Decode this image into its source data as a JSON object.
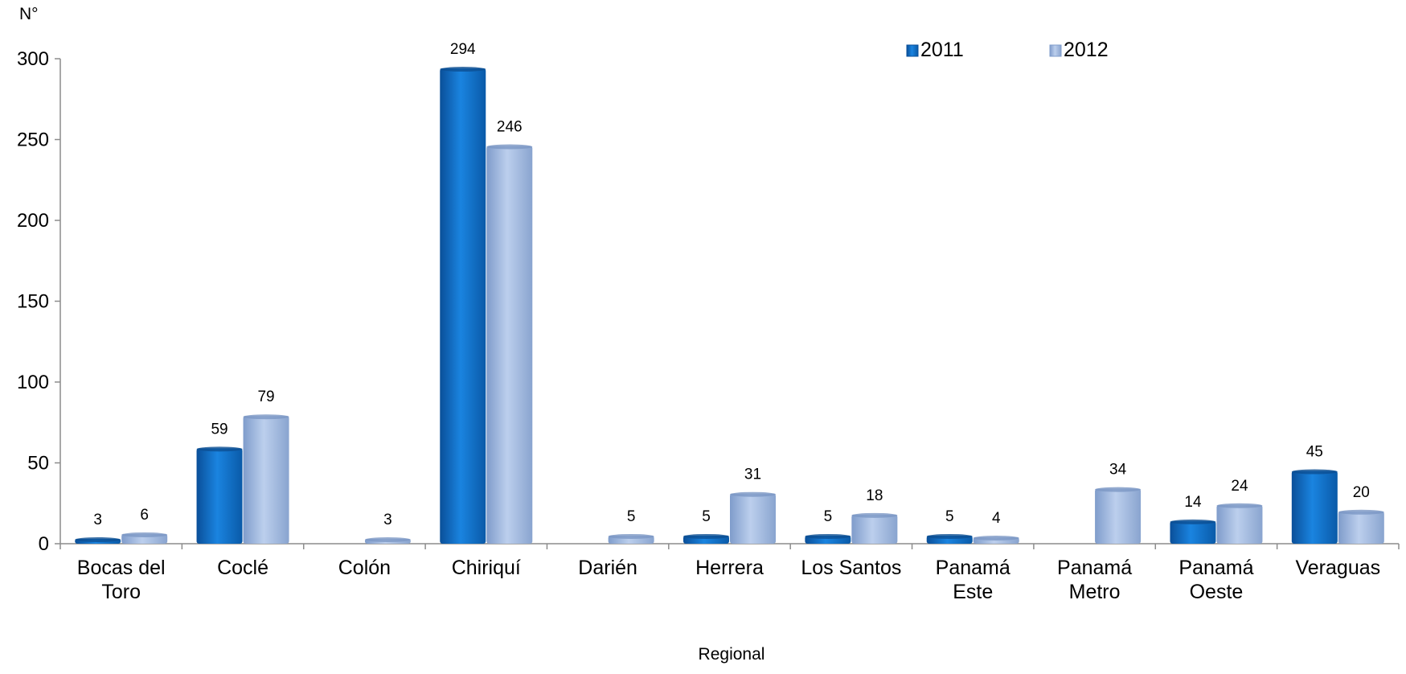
{
  "chart_data": {
    "type": "bar",
    "title": "",
    "xlabel": "Regional",
    "ylabel": "N°",
    "ylim": [
      0,
      300
    ],
    "yticks": [
      0,
      50,
      100,
      150,
      200,
      250,
      300
    ],
    "grid": false,
    "legend_position": "top-right",
    "categories": [
      [
        "Bocas del",
        "Toro"
      ],
      [
        "Coclé"
      ],
      [
        "Colón"
      ],
      [
        "Chiriquí"
      ],
      [
        "Darién"
      ],
      [
        "Herrera"
      ],
      [
        "Los Santos"
      ],
      [
        "Panamá",
        "Este"
      ],
      [
        "Panamá",
        "Metro"
      ],
      [
        "Panamá",
        "Oeste"
      ],
      [
        "Veraguas"
      ]
    ],
    "series": [
      {
        "name": "2011",
        "color": "#0a6ac4",
        "values": [
          3,
          59,
          null,
          294,
          null,
          5,
          5,
          5,
          null,
          14,
          45
        ],
        "labels": [
          "3",
          "59",
          "",
          "294",
          "",
          "5",
          "5",
          "5",
          "",
          "14",
          "45"
        ]
      },
      {
        "name": "2012",
        "color": "#98b4dc",
        "values": [
          6,
          79,
          3,
          246,
          5,
          31,
          18,
          4,
          34,
          24,
          20
        ],
        "labels": [
          "6",
          "79",
          "3",
          "246",
          "5",
          "31",
          "18",
          "4",
          "34",
          "24",
          "20"
        ]
      }
    ]
  }
}
